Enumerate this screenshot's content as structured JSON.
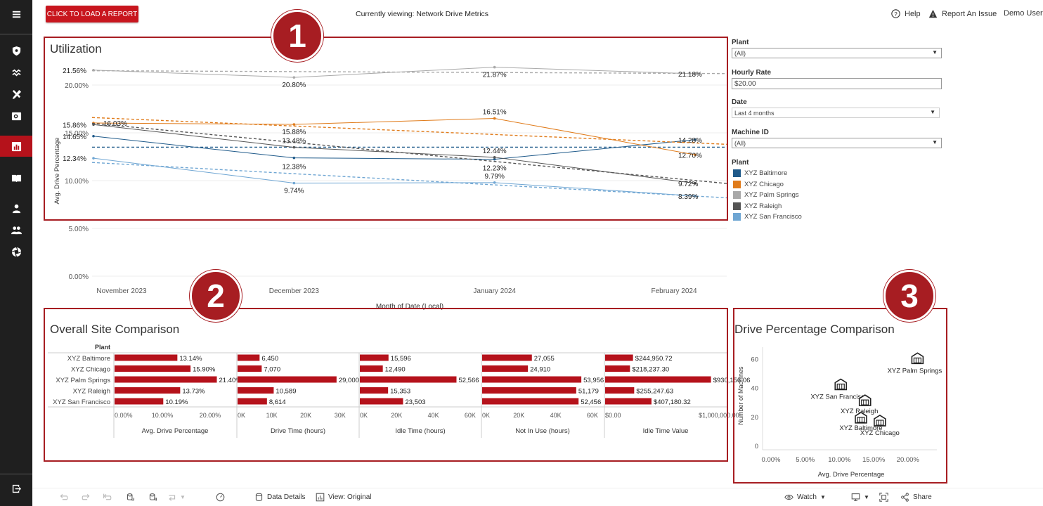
{
  "sidebar": {
    "items": [
      {
        "name": "menu-icon"
      },
      {
        "name": "shield-icon"
      },
      {
        "name": "wave-icon"
      },
      {
        "name": "tools-icon"
      },
      {
        "name": "search-report-icon"
      },
      {
        "name": "bar-chart-icon"
      },
      {
        "name": "book-icon"
      },
      {
        "name": "user-icon"
      },
      {
        "name": "users-icon"
      },
      {
        "name": "aperture-icon"
      },
      {
        "name": "logout-icon"
      }
    ]
  },
  "header": {
    "load_button": "CLICK TO LOAD A REPORT",
    "viewing": "Currently viewing: Network Drive Metrics",
    "help": "Help",
    "report_issue": "Report An Issue",
    "user": "Demo User"
  },
  "badges": {
    "one": "1",
    "two": "2",
    "three": "3"
  },
  "colors": {
    "accent": "#c8161e",
    "baltimore": "#1f5a8a",
    "chicago": "#e07b1a",
    "palm_springs": "#a9a9a9",
    "raleigh": "#555555",
    "san_francisco": "#6fa6d3"
  },
  "utilization": {
    "title": "Utilization",
    "ylabel": "Avg. Drive Percentage",
    "xlabel": "Month of Date (Local)"
  },
  "filters": {
    "plant_label": "Plant",
    "plant_value": "(All)",
    "hourly_label": "Hourly Rate",
    "hourly_value": "$20.00",
    "date_label": "Date",
    "date_value": "Last 4 months",
    "machine_label": "Machine ID",
    "machine_value": "(All)",
    "legend_label": "Plant",
    "legend": [
      "XYZ Baltimore",
      "XYZ Chicago",
      "XYZ Palm Springs",
      "XYZ Raleigh",
      "XYZ San Francisco"
    ]
  },
  "site_comparison": {
    "title": "Overall Site Comparison",
    "plant_header": "Plant"
  },
  "drive_comparison": {
    "title": "Drive Percentage Comparison",
    "xlabel": "Avg. Drive Percentage",
    "ylabel": "Number of Machines"
  },
  "chart_data": [
    {
      "type": "line",
      "title": "Utilization",
      "xlabel": "Month of Date (Local)",
      "ylabel": "Avg. Drive Percentage",
      "categories": [
        "November 2023",
        "December 2023",
        "January 2024",
        "February 2024"
      ],
      "y_ticks": [
        "0.00%",
        "5.00%",
        "10.00%",
        "15.00%",
        "20.00%"
      ],
      "ylim": [
        0,
        23
      ],
      "series": [
        {
          "name": "XYZ Baltimore",
          "color": "#1f5a8a",
          "values": [
            14.65,
            12.38,
            12.23,
            14.28
          ],
          "trend": [
            13.5,
            13.5
          ],
          "labels": [
            "14.65%",
            "12.38%",
            "12.23%",
            "14.28%"
          ]
        },
        {
          "name": "XYZ Chicago",
          "color": "#e07b1a",
          "values": [
            16.03,
            15.88,
            16.51,
            12.7
          ],
          "trend": [
            16.6,
            13.8
          ],
          "labels": [
            "16.03%",
            "15.88%",
            "16.51%",
            "12.70%"
          ]
        },
        {
          "name": "XYZ Palm Springs",
          "color": "#a9a9a9",
          "values": [
            21.56,
            20.8,
            21.87,
            21.18
          ],
          "trend": [
            21.5,
            21.2
          ],
          "labels": [
            "21.56%",
            "20.80%",
            "21.87%",
            "21.18%"
          ]
        },
        {
          "name": "XYZ Raleigh",
          "color": "#555555",
          "values": [
            15.86,
            13.48,
            12.44,
            9.72
          ],
          "trend": [
            16.0,
            9.7
          ],
          "labels": [
            "15.86%",
            "13.48%",
            "12.44%",
            "9.72%"
          ]
        },
        {
          "name": "XYZ San Francisco",
          "color": "#6fa6d3",
          "values": [
            12.34,
            9.74,
            9.79,
            8.39
          ],
          "trend": [
            11.9,
            8.2
          ],
          "labels": [
            "12.34%",
            "9.74%",
            "9.79%",
            "8.39%"
          ]
        }
      ]
    },
    {
      "type": "bar",
      "title": "Overall Site Comparison",
      "categories": [
        "XYZ Baltimore",
        "XYZ Chicago",
        "XYZ Palm Springs",
        "XYZ Raleigh",
        "XYZ San Francisco"
      ],
      "panels": [
        {
          "name": "Avg. Drive Percentage",
          "max": 25,
          "values": [
            13.14,
            15.9,
            21.4,
            13.73,
            10.19
          ],
          "labels": [
            "13.14%",
            "15.90%",
            "21.40%",
            "13.73%",
            "10.19%"
          ],
          "ticks": [
            "0.00%",
            "10.00%",
            "20.00%"
          ],
          "tick_values": [
            0,
            10,
            20
          ]
        },
        {
          "name": "Drive Time (hours)",
          "max": 35000,
          "values": [
            6450,
            7070,
            29000,
            10589,
            8614
          ],
          "labels": [
            "6,450",
            "7,070",
            "29,000",
            "10,589",
            "8,614"
          ],
          "ticks": [
            "0K",
            "10K",
            "20K",
            "30K"
          ],
          "tick_values": [
            0,
            10000,
            20000,
            30000
          ]
        },
        {
          "name": "Idle Time (hours)",
          "max": 65000,
          "values": [
            15596,
            12490,
            52566,
            15353,
            23503
          ],
          "labels": [
            "15,596",
            "12,490",
            "52,566",
            "15,353",
            "23,503"
          ],
          "ticks": [
            "0K",
            "20K",
            "40K",
            "60K"
          ],
          "tick_values": [
            0,
            20000,
            40000,
            60000
          ]
        },
        {
          "name": "Not In Use (hours)",
          "max": 65000,
          "values": [
            27055,
            24910,
            53956,
            51179,
            52456
          ],
          "labels": [
            "27,055",
            "24,910",
            "53,956",
            "51,179",
            "52,456"
          ],
          "ticks": [
            "0K",
            "20K",
            "40K",
            "60K"
          ],
          "tick_values": [
            0,
            20000,
            40000,
            60000
          ]
        },
        {
          "name": "Idle Time Value",
          "max": 1050000,
          "values": [
            244950.72,
            218237.3,
            930156.06,
            255247.63,
            407180.32
          ],
          "labels": [
            "$244,950.72",
            "$218,237.30",
            "$930,156.06",
            "$255,247.63",
            "$407,180.32"
          ],
          "ticks": [
            "$0.00",
            "$1,000,000.00"
          ],
          "tick_values": [
            0,
            1000000
          ]
        }
      ]
    },
    {
      "type": "scatter",
      "title": "Drive Percentage Comparison",
      "xlabel": "Avg. Drive Percentage",
      "ylabel": "Number of Machines",
      "x_ticks": [
        "0.00%",
        "5.00%",
        "10.00%",
        "15.00%",
        "20.00%"
      ],
      "y_ticks": [
        "0",
        "20",
        "40",
        "60"
      ],
      "xlim": [
        0,
        23
      ],
      "ylim": [
        0,
        66
      ],
      "points": [
        {
          "label": "XYZ Palm Springs",
          "x": 21.4,
          "y": 60
        },
        {
          "label": "XYZ San Francisco",
          "x": 10.19,
          "y": 42
        },
        {
          "label": "XYZ Raleigh",
          "x": 13.73,
          "y": 31
        },
        {
          "label": "XYZ Baltimore",
          "x": 13.14,
          "y": 19
        },
        {
          "label": "XYZ Chicago",
          "x": 15.9,
          "y": 17
        }
      ]
    }
  ],
  "bottombar": {
    "data_details": "Data Details",
    "view": "View: Original",
    "watch": "Watch",
    "share": "Share"
  }
}
